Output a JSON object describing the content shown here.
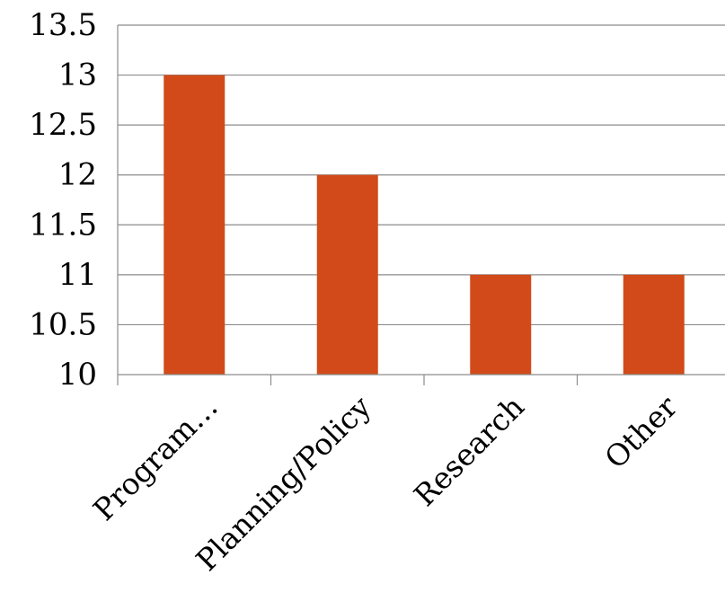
{
  "chart_data": {
    "type": "bar",
    "title": "",
    "xlabel": "",
    "ylabel": "",
    "categories": [
      "Program…",
      "Planning/Policy",
      "Research",
      "Other"
    ],
    "values": [
      13,
      12,
      11,
      11
    ],
    "ylim": [
      10,
      13.5
    ],
    "yticks": [
      "10",
      "10.5",
      "11",
      "11.5",
      "12",
      "12.5",
      "13",
      "13.5"
    ],
    "grid": true,
    "legend": "none",
    "bar_color": "#D24A19"
  }
}
